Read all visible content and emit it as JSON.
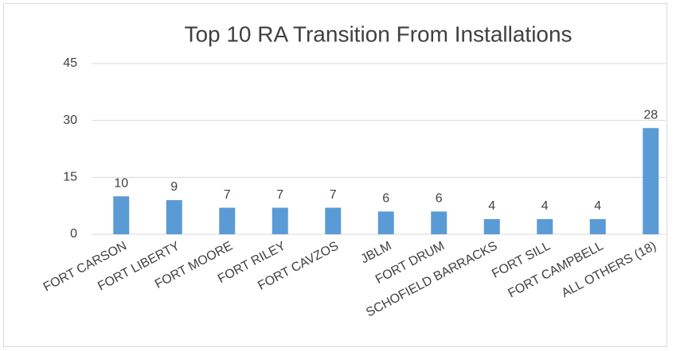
{
  "chart_data": {
    "type": "bar",
    "title": "Top 10 RA Transition From Installations",
    "categories": [
      "FORT CARSON",
      "FORT LIBERTY",
      "FORT MOORE",
      "FORT RILEY",
      "FORT CAVZOS",
      "JBLM",
      "FORT DRUM",
      "SCHOFIELD BARRACKS",
      "FORT SILL",
      "FORT CAMPBELL",
      "ALL OTHERS (18)"
    ],
    "values": [
      10,
      9,
      7,
      7,
      7,
      6,
      6,
      4,
      4,
      4,
      28
    ],
    "color": "#5b9bd5",
    "ylim": [
      0,
      45
    ],
    "yticks": [
      0,
      15,
      30,
      45
    ],
    "grid": true
  }
}
